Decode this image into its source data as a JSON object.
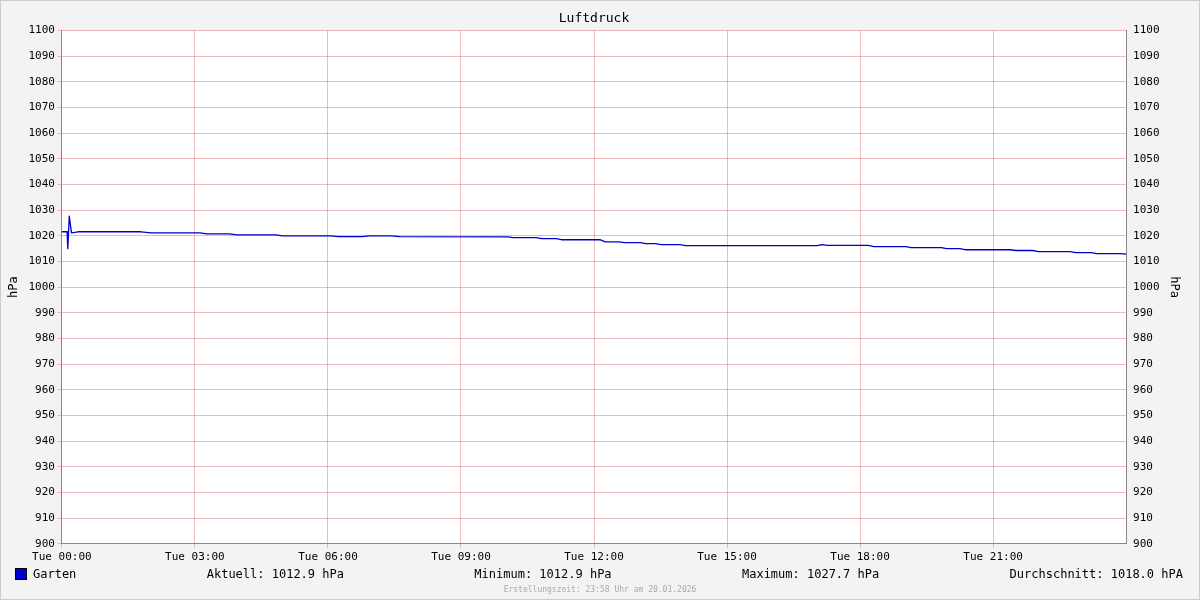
{
  "chart_data": {
    "type": "line",
    "title": "Luftdruck",
    "ylabel": "hPa",
    "y2label": "hPa",
    "xlim": [
      "2026-01-20T00:00",
      "2026-01-21T00:00"
    ],
    "xticks": [
      {
        "value": "2026-01-20T00:00",
        "label": "Tue 00:00"
      },
      {
        "value": "2026-01-20T03:00",
        "label": "Tue 03:00"
      },
      {
        "value": "2026-01-20T06:00",
        "label": "Tue 06:00"
      },
      {
        "value": "2026-01-20T09:00",
        "label": "Tue 09:00"
      },
      {
        "value": "2026-01-20T12:00",
        "label": "Tue 12:00"
      },
      {
        "value": "2026-01-20T15:00",
        "label": "Tue 15:00"
      },
      {
        "value": "2026-01-20T18:00",
        "label": "Tue 18:00"
      },
      {
        "value": "2026-01-20T21:00",
        "label": "Tue 21:00"
      }
    ],
    "ylim": [
      900,
      1100
    ],
    "yticks": [
      900,
      910,
      920,
      930,
      940,
      950,
      960,
      970,
      980,
      990,
      1000,
      1010,
      1020,
      1030,
      1040,
      1050,
      1060,
      1070,
      1080,
      1090,
      1100
    ],
    "y2lim": [
      900,
      1100
    ],
    "y2ticks": [
      900,
      910,
      920,
      930,
      940,
      950,
      960,
      970,
      980,
      990,
      1000,
      1010,
      1020,
      1030,
      1040,
      1050,
      1060,
      1070,
      1080,
      1090,
      1100
    ],
    "grid": true,
    "legend": "bottom left",
    "marker": "none",
    "line_style": "solid",
    "x": [
      "2026-01-20T00:00",
      "2026-01-20T00:07",
      "2026-01-20T00:08",
      "2026-01-20T00:10",
      "2026-01-20T00:13",
      "2026-01-20T00:22",
      "2026-01-20T01:47",
      "2026-01-20T02:01",
      "2026-01-20T03:07",
      "2026-01-20T03:16",
      "2026-01-20T03:47",
      "2026-01-20T03:57",
      "2026-01-20T04:49",
      "2026-01-20T04:59",
      "2026-01-20T06:04",
      "2026-01-20T06:14",
      "2026-01-20T06:46",
      "2026-01-20T06:56",
      "2026-01-20T07:26",
      "2026-01-20T07:37",
      "2026-01-20T10:04",
      "2026-01-20T10:10",
      "2026-01-20T10:42",
      "2026-01-20T10:49",
      "2026-01-20T11:09",
      "2026-01-20T11:16",
      "2026-01-20T12:08",
      "2026-01-20T12:15",
      "2026-01-20T12:34",
      "2026-01-20T12:41",
      "2026-01-20T13:03",
      "2026-01-20T13:10",
      "2026-01-20T13:23",
      "2026-01-20T13:31",
      "2026-01-20T13:56",
      "2026-01-20T14:04",
      "2026-01-20T17:02",
      "2026-01-20T17:08",
      "2026-01-20T17:16",
      "2026-01-20T18:11",
      "2026-01-20T18:19",
      "2026-01-20T19:02",
      "2026-01-20T19:09",
      "2026-01-20T19:50",
      "2026-01-20T19:57",
      "2026-01-20T20:15",
      "2026-01-20T20:22",
      "2026-01-20T21:23",
      "2026-01-20T21:31",
      "2026-01-20T21:54",
      "2026-01-20T22:01",
      "2026-01-20T22:44",
      "2026-01-20T22:52",
      "2026-01-20T23:13",
      "2026-01-20T23:20",
      "2026-01-20T23:53",
      "2026-01-21T00:00"
    ],
    "series": [
      {
        "name": "Garten",
        "color": "#0000cc",
        "values": [
          1021.6,
          1021.6,
          1015.0,
          1027.7,
          1021.2,
          1021.6,
          1021.6,
          1021.2,
          1021.2,
          1020.8,
          1020.8,
          1020.4,
          1020.4,
          1020.0,
          1020.0,
          1019.7,
          1019.7,
          1020.0,
          1020.0,
          1019.7,
          1019.6,
          1019.3,
          1019.3,
          1018.9,
          1018.9,
          1018.5,
          1018.5,
          1017.7,
          1017.7,
          1017.4,
          1017.4,
          1017.0,
          1017.0,
          1016.6,
          1016.6,
          1016.2,
          1016.2,
          1016.6,
          1016.3,
          1016.3,
          1015.8,
          1015.8,
          1015.4,
          1015.4,
          1015.0,
          1015.0,
          1014.6,
          1014.6,
          1014.3,
          1014.3,
          1013.9,
          1013.9,
          1013.5,
          1013.5,
          1013.1,
          1013.1,
          1012.9
        ]
      }
    ],
    "annotations": [
      "Aktuell: 1012.9 hPa",
      "Minimum: 1012.9 hPa",
      "Maximum: 1027.7 hPa",
      "Durchschnitt: 1018.0 hPA",
      "Erstellungszeit: 23:58 Uhr am 20.01.2026"
    ]
  }
}
